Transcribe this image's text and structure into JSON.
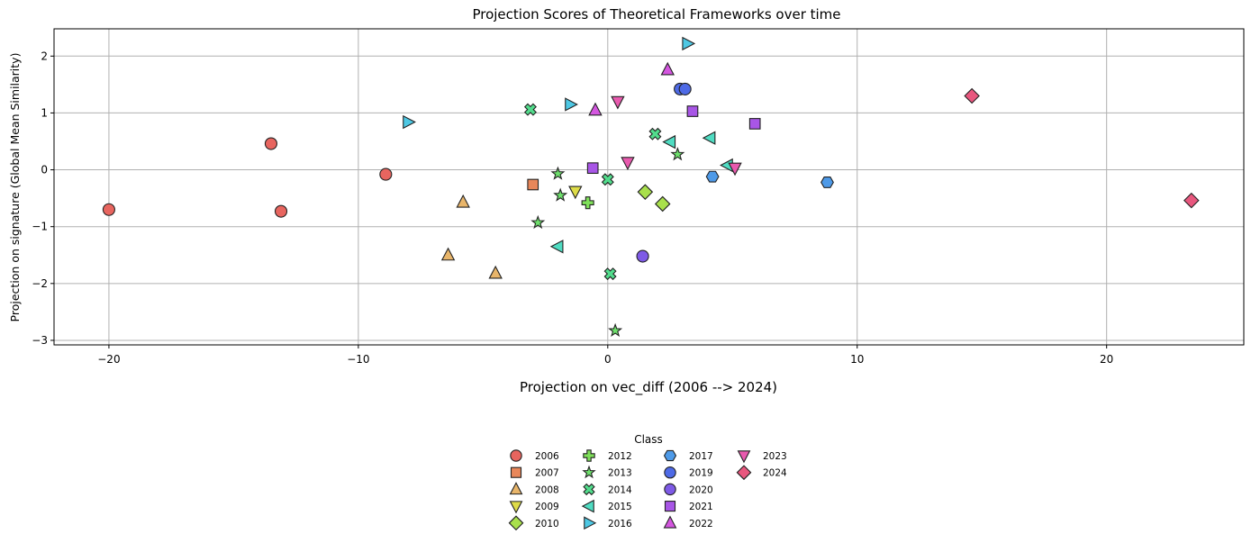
{
  "chart_data": {
    "type": "scatter",
    "title": "Projection Scores of Theoretical Frameworks over time",
    "xlabel": "Projection on vec_diff (2006 --> 2024)",
    "ylabel": "Projection on signature (Global Mean Similarity)",
    "xlim": [
      -22.2,
      25.5
    ],
    "ylim": [
      -3.08,
      2.48
    ],
    "x_ticks": [
      -20,
      -10,
      0,
      10,
      20
    ],
    "x_tick_labels": [
      "−20",
      "−10",
      "0",
      "10",
      "20"
    ],
    "y_ticks": [
      -3,
      -2,
      -1,
      0,
      1,
      2
    ],
    "y_tick_labels": [
      "−3",
      "−2",
      "−1",
      "0",
      "1",
      "2"
    ],
    "grid": true,
    "legend": {
      "title": "Class",
      "placement": "bottom-center",
      "columns": 4
    },
    "series": [
      {
        "name": "2006",
        "marker": "circle",
        "color": "#e8655f",
        "points": [
          [
            -20.0,
            -0.7
          ],
          [
            -13.5,
            0.46
          ],
          [
            -13.1,
            -0.73
          ],
          [
            -8.9,
            -0.08
          ]
        ]
      },
      {
        "name": "2007",
        "marker": "square",
        "color": "#e8875a",
        "points": [
          [
            -3.0,
            -0.26
          ]
        ]
      },
      {
        "name": "2008",
        "marker": "triangle-up",
        "color": "#e8b56a",
        "points": [
          [
            -5.8,
            -0.57
          ],
          [
            -6.4,
            -1.5
          ],
          [
            -4.5,
            -1.82
          ]
        ]
      },
      {
        "name": "2009",
        "marker": "triangle-down",
        "color": "#dedc48",
        "points": [
          [
            -1.3,
            -0.38
          ]
        ]
      },
      {
        "name": "2010",
        "marker": "diamond",
        "color": "#a9e04c",
        "points": [
          [
            1.5,
            -0.39
          ],
          [
            2.2,
            -0.6
          ]
        ]
      },
      {
        "name": "2012",
        "marker": "plus",
        "color": "#7fe05a",
        "points": [
          [
            -0.8,
            -0.58
          ]
        ]
      },
      {
        "name": "2013",
        "marker": "star",
        "color": "#6ee06c",
        "points": [
          [
            -2.0,
            -0.07
          ],
          [
            -1.9,
            -0.45
          ],
          [
            -2.8,
            -0.93
          ],
          [
            0.3,
            -2.83
          ],
          [
            2.8,
            0.27
          ]
        ]
      },
      {
        "name": "2014",
        "marker": "x",
        "color": "#52dc8c",
        "points": [
          [
            -3.1,
            1.06
          ],
          [
            0.0,
            -0.17
          ],
          [
            0.1,
            -1.83
          ],
          [
            1.9,
            0.63
          ]
        ]
      },
      {
        "name": "2015",
        "marker": "triangle-left",
        "color": "#4fdcc2",
        "points": [
          [
            -2.0,
            -1.35
          ],
          [
            2.5,
            0.49
          ],
          [
            4.1,
            0.56
          ],
          [
            4.8,
            0.08
          ]
        ]
      },
      {
        "name": "2016",
        "marker": "triangle-right",
        "color": "#4ec8e4",
        "points": [
          [
            -8.0,
            0.84
          ],
          [
            -1.5,
            1.15
          ],
          [
            3.2,
            2.22
          ]
        ]
      },
      {
        "name": "2017",
        "marker": "hexagon",
        "color": "#4e9ae8",
        "points": [
          [
            4.2,
            -0.12
          ],
          [
            8.8,
            -0.22
          ]
        ]
      },
      {
        "name": "2019",
        "marker": "circle",
        "color": "#4e6ae6",
        "points": [
          [
            2.9,
            1.42
          ],
          [
            3.1,
            1.42
          ]
        ]
      },
      {
        "name": "2020",
        "marker": "circle",
        "color": "#7e5ae6",
        "points": [
          [
            1.4,
            -1.52
          ]
        ]
      },
      {
        "name": "2021",
        "marker": "square",
        "color": "#a856e6",
        "points": [
          [
            -0.6,
            0.03
          ],
          [
            3.4,
            1.03
          ],
          [
            5.9,
            0.81
          ]
        ]
      },
      {
        "name": "2022",
        "marker": "triangle-up",
        "color": "#d456e0",
        "points": [
          [
            -0.5,
            1.05
          ],
          [
            2.4,
            1.76
          ]
        ]
      },
      {
        "name": "2023",
        "marker": "triangle-down",
        "color": "#e85aae",
        "points": [
          [
            0.4,
            1.2
          ],
          [
            0.8,
            0.13
          ],
          [
            5.1,
            0.03
          ]
        ]
      },
      {
        "name": "2024",
        "marker": "diamond",
        "color": "#e8577e",
        "points": [
          [
            14.6,
            1.3
          ],
          [
            23.4,
            -0.54
          ]
        ]
      }
    ]
  }
}
